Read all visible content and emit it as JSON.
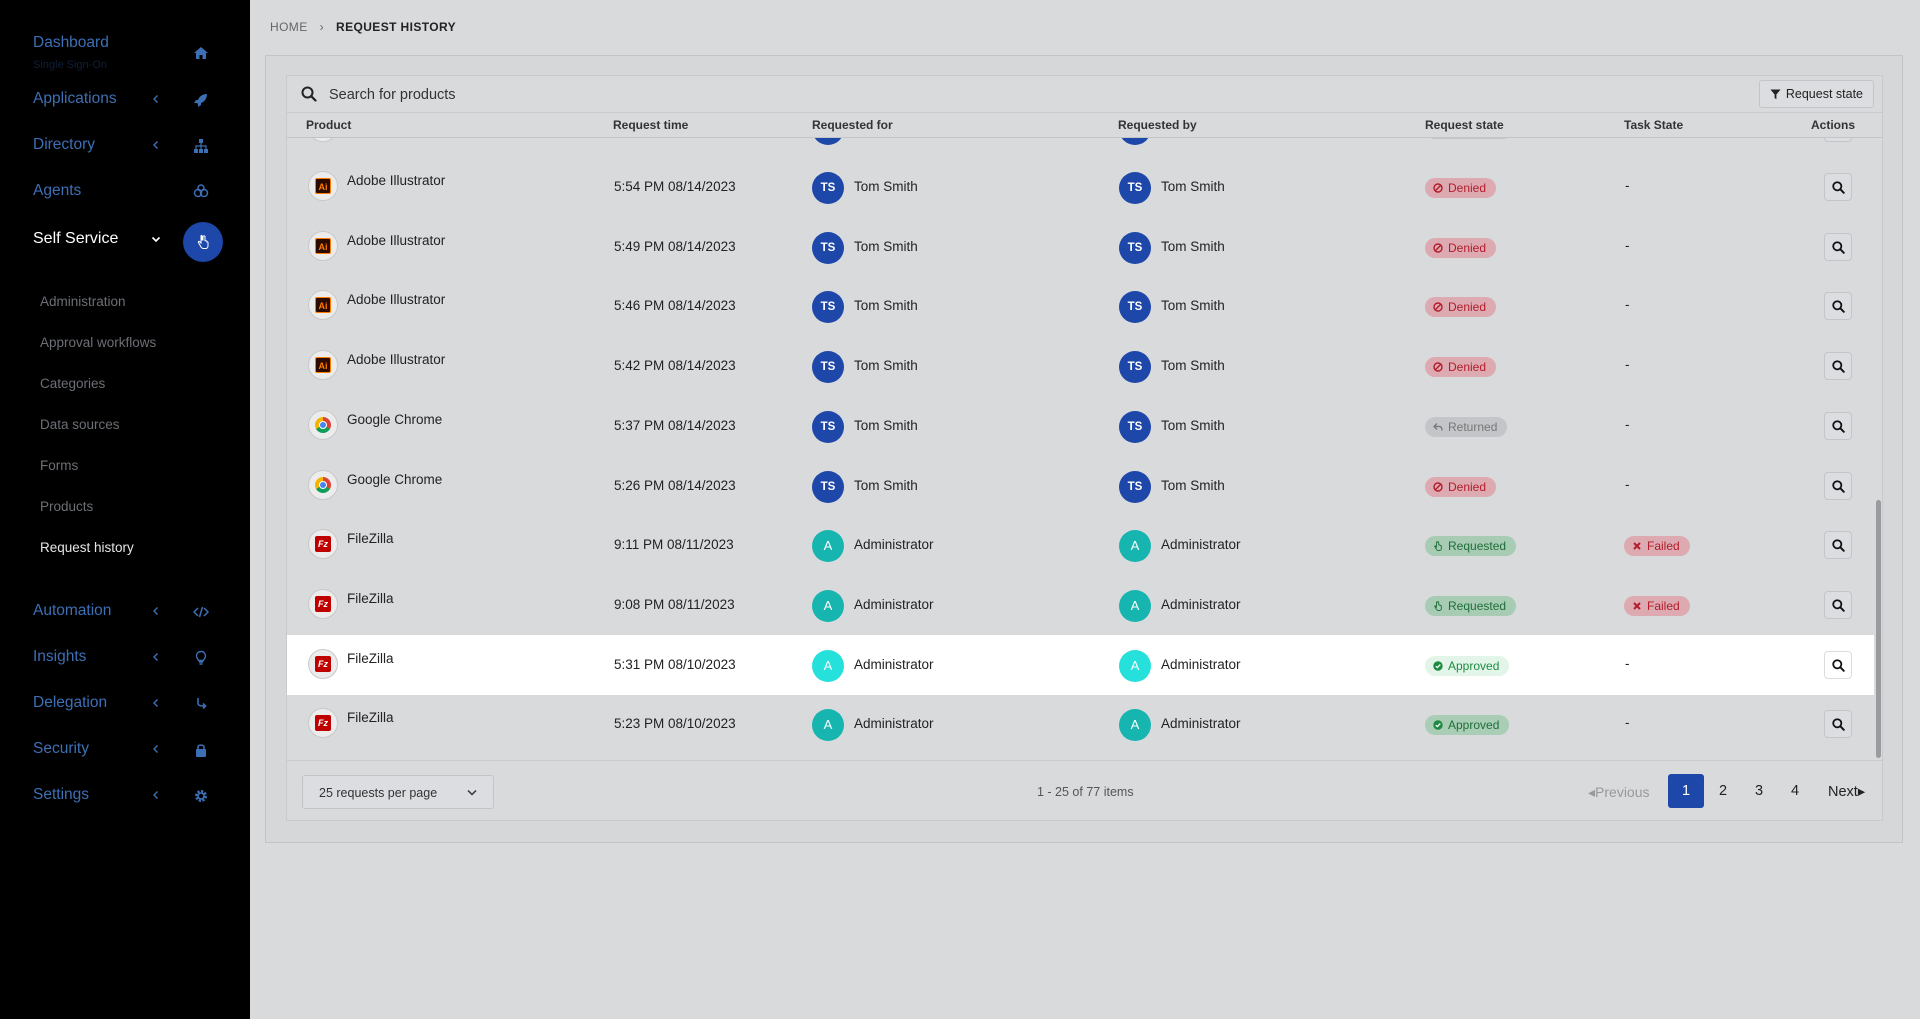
{
  "sidebar": {
    "dashboard": {
      "label": "Dashboard",
      "subtitle": "Single Sign-On"
    },
    "items": [
      {
        "label": "Applications",
        "icon": "rocket-icon"
      },
      {
        "label": "Directory",
        "icon": "sitemap-icon"
      },
      {
        "label": "Agents",
        "icon": "agents-icon"
      },
      {
        "label": "Self Service",
        "icon": "hand-pointer-icon"
      },
      {
        "label": "Automation",
        "icon": "code-icon"
      },
      {
        "label": "Insights",
        "icon": "lightbulb-icon"
      },
      {
        "label": "Delegation",
        "icon": "delegation-icon"
      },
      {
        "label": "Security",
        "icon": "lock-icon"
      },
      {
        "label": "Settings",
        "icon": "gear-icon"
      }
    ],
    "sub_items": [
      "Administration",
      "Approval workflows",
      "Categories",
      "Data sources",
      "Forms",
      "Products",
      "Request history"
    ],
    "active_color": "#1d47a8"
  },
  "breadcrumb": {
    "home": "HOME",
    "separator": "›",
    "current": "REQUEST HISTORY"
  },
  "search": {
    "placeholder": "Search for products"
  },
  "filter": {
    "label": "Request state"
  },
  "table": {
    "headers": {
      "product": "Product",
      "request_time": "Request time",
      "requested_for": "Requested for",
      "requested_by": "Requested by",
      "request_state": "Request state",
      "task_state": "Task State",
      "actions": "Actions"
    },
    "rows": [
      {
        "product": "Adobe Illustrator",
        "icon": "ai",
        "time": "5:54 PM 08/14/2023",
        "for_initials": "TS",
        "for_name": "Tom Smith",
        "by_initials": "TS",
        "by_name": "Tom Smith",
        "state": "Denied",
        "state_kind": "denied",
        "task": "-"
      },
      {
        "product": "Adobe Illustrator",
        "icon": "ai",
        "time": "5:49 PM 08/14/2023",
        "for_initials": "TS",
        "for_name": "Tom Smith",
        "by_initials": "TS",
        "by_name": "Tom Smith",
        "state": "Denied",
        "state_kind": "denied",
        "task": "-"
      },
      {
        "product": "Adobe Illustrator",
        "icon": "ai",
        "time": "5:46 PM 08/14/2023",
        "for_initials": "TS",
        "for_name": "Tom Smith",
        "by_initials": "TS",
        "by_name": "Tom Smith",
        "state": "Denied",
        "state_kind": "denied",
        "task": "-"
      },
      {
        "product": "Adobe Illustrator",
        "icon": "ai",
        "time": "5:42 PM 08/14/2023",
        "for_initials": "TS",
        "for_name": "Tom Smith",
        "by_initials": "TS",
        "by_name": "Tom Smith",
        "state": "Denied",
        "state_kind": "denied",
        "task": "-"
      },
      {
        "product": "Google Chrome",
        "icon": "chrome",
        "time": "5:37 PM 08/14/2023",
        "for_initials": "TS",
        "for_name": "Tom Smith",
        "by_initials": "TS",
        "by_name": "Tom Smith",
        "state": "Returned",
        "state_kind": "returned",
        "task": "-"
      },
      {
        "product": "Google Chrome",
        "icon": "chrome",
        "time": "5:26 PM 08/14/2023",
        "for_initials": "TS",
        "for_name": "Tom Smith",
        "by_initials": "TS",
        "by_name": "Tom Smith",
        "state": "Denied",
        "state_kind": "denied",
        "task": "-"
      },
      {
        "product": "FileZilla",
        "icon": "fz",
        "time": "9:11 PM 08/11/2023",
        "for_initials": "A",
        "for_name": "Administrator",
        "by_initials": "A",
        "by_name": "Administrator",
        "state": "Requested",
        "state_kind": "requested",
        "task": "Failed"
      },
      {
        "product": "FileZilla",
        "icon": "fz",
        "time": "9:08 PM 08/11/2023",
        "for_initials": "A",
        "for_name": "Administrator",
        "by_initials": "A",
        "by_name": "Administrator",
        "state": "Requested",
        "state_kind": "requested",
        "task": "Failed"
      },
      {
        "product": "FileZilla",
        "icon": "fz",
        "time": "5:31 PM 08/10/2023",
        "for_initials": "A",
        "for_name": "Administrator",
        "by_initials": "A",
        "by_name": "Administrator",
        "state": "Approved",
        "state_kind": "approved",
        "task": "-",
        "highlight": true
      },
      {
        "product": "FileZilla",
        "icon": "fz",
        "time": "5:23 PM 08/10/2023",
        "for_initials": "A",
        "for_name": "Administrator",
        "by_initials": "A",
        "by_name": "Administrator",
        "state": "Approved",
        "state_kind": "approved",
        "task": "-"
      }
    ]
  },
  "pagination": {
    "per_page": "25 requests per page",
    "items": "1 - 25 of 77 items",
    "previous": "Previous",
    "pages": [
      "1",
      "2",
      "3",
      "4"
    ],
    "current_page": "1",
    "next": "Next"
  }
}
